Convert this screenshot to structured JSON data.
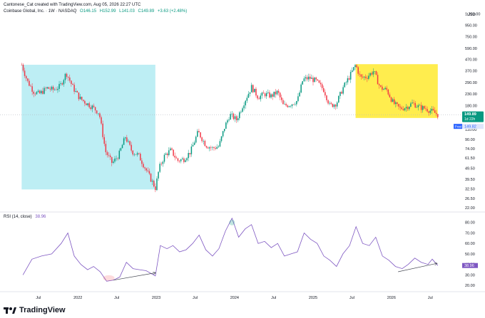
{
  "header": {
    "credit": "Cantonese_Cat created with TradingView.com, Aug 05, 2026 22:27 UTC",
    "symbol": "Coinbase Global, Inc. · 1W · NASDAQ",
    "open": "O146.15",
    "high": "H152.99",
    "low": "L141.03",
    "close": "C149.89",
    "change": "+3.63 (+2.48%)"
  },
  "rsi_header": {
    "label": "RSI (14, close)",
    "value": "38.96"
  },
  "branding": {
    "logo_text": "TradingView"
  },
  "colors": {
    "up": "#089981",
    "down": "#f23645",
    "cyan_zone": "#b2ebf2",
    "yellow_zone": "#ffeb3b",
    "rsi_line": "#7e57c2",
    "price_badge": "#089981",
    "post_badge": "#2962ff"
  },
  "chart_data": [
    {
      "type": "candlestick",
      "scale": "log",
      "currency_label": "USD",
      "y_ticks": [
        "1,200.00",
        "950.00",
        "750.00",
        "590.00",
        "470.00",
        "370.00",
        "290.00",
        "230.00",
        "180.00",
        "140.00",
        "110.00",
        "90.00",
        "74.00",
        "61.50",
        "49.50",
        "39.50",
        "32.50",
        "26.50",
        "22.00"
      ],
      "y_tick_values": [
        1200,
        950,
        750,
        590,
        470,
        370,
        290,
        230,
        180,
        140,
        110,
        90,
        74,
        61.5,
        49.5,
        39.5,
        32.5,
        26.5,
        22
      ],
      "x_ticks": [
        "Jul",
        "2022",
        "Jul",
        "2023",
        "Jul",
        "2024",
        "Jul",
        "2025",
        "Jul",
        "2026",
        "Jul"
      ],
      "x_tick_dates": [
        "2021-07-01",
        "2022-01-01",
        "2022-07-01",
        "2023-01-01",
        "2023-07-01",
        "2024-01-01",
        "2024-07-01",
        "2025-01-01",
        "2025-07-01",
        "2026-01-01",
        "2026-07-01"
      ],
      "last_price": {
        "value": 149.89,
        "label": "149.89",
        "countdown": "1d 22h"
      },
      "post_market": {
        "label": "Post",
        "value": "149.82"
      },
      "close_path": [
        [
          "2021-04-14",
          420
        ],
        [
          "2021-05-10",
          300
        ],
        [
          "2021-06-10",
          240
        ],
        [
          "2021-07-05",
          230
        ],
        [
          "2021-08-10",
          260
        ],
        [
          "2021-09-10",
          250
        ],
        [
          "2021-10-10",
          270
        ],
        [
          "2021-11-08",
          355
        ],
        [
          "2021-12-10",
          260
        ],
        [
          "2022-01-10",
          210
        ],
        [
          "2022-02-10",
          190
        ],
        [
          "2022-03-10",
          175
        ],
        [
          "2022-04-10",
          155
        ],
        [
          "2022-05-10",
          70
        ],
        [
          "2022-06-10",
          55
        ],
        [
          "2022-07-10",
          65
        ],
        [
          "2022-08-10",
          95
        ],
        [
          "2022-09-10",
          70
        ],
        [
          "2022-10-10",
          65
        ],
        [
          "2022-11-10",
          50
        ],
        [
          "2022-12-28",
          33
        ],
        [
          "2023-01-15",
          50
        ],
        [
          "2023-02-10",
          65
        ],
        [
          "2023-03-10",
          72
        ],
        [
          "2023-04-10",
          58
        ],
        [
          "2023-05-10",
          60
        ],
        [
          "2023-06-10",
          70
        ],
        [
          "2023-07-15",
          105
        ],
        [
          "2023-08-20",
          80
        ],
        [
          "2023-09-20",
          75
        ],
        [
          "2023-10-20",
          78
        ],
        [
          "2023-11-15",
          115
        ],
        [
          "2023-12-10",
          150
        ],
        [
          "2024-01-10",
          135
        ],
        [
          "2024-02-15",
          195
        ],
        [
          "2024-03-20",
          265
        ],
        [
          "2024-04-20",
          215
        ],
        [
          "2024-05-20",
          230
        ],
        [
          "2024-06-20",
          220
        ],
        [
          "2024-07-20",
          240
        ],
        [
          "2024-08-15",
          180
        ],
        [
          "2024-09-15",
          185
        ],
        [
          "2024-10-20",
          200
        ],
        [
          "2024-11-15",
          310
        ],
        [
          "2024-12-15",
          320
        ],
        [
          "2025-01-15",
          300
        ],
        [
          "2025-02-20",
          250
        ],
        [
          "2025-03-20",
          180
        ],
        [
          "2025-04-20",
          190
        ],
        [
          "2025-05-20",
          260
        ],
        [
          "2025-06-20",
          330
        ],
        [
          "2025-07-18",
          420
        ],
        [
          "2025-08-10",
          320
        ],
        [
          "2025-09-10",
          330
        ],
        [
          "2025-10-10",
          370
        ],
        [
          "2025-11-10",
          260
        ],
        [
          "2025-12-10",
          250
        ],
        [
          "2026-01-10",
          190
        ],
        [
          "2026-02-10",
          170
        ],
        [
          "2026-03-10",
          175
        ],
        [
          "2026-04-10",
          190
        ],
        [
          "2026-05-10",
          175
        ],
        [
          "2026-06-10",
          170
        ],
        [
          "2026-07-10",
          160
        ],
        [
          "2026-08-05",
          149.89
        ]
      ],
      "annotations": [
        {
          "type": "highlight-zone",
          "color": "cyan",
          "from": "2021-04-14",
          "to": "2022-12-28",
          "low": 32,
          "high": 420
        },
        {
          "type": "highlight-zone",
          "color": "yellow",
          "from": "2025-07-18",
          "to": "2026-08-05",
          "low": 140,
          "high": 425
        }
      ]
    },
    {
      "type": "line",
      "name": "RSI (14, close)",
      "y_ticks": [
        "80.00",
        "70.00",
        "60.00",
        "50.00",
        "40.00",
        "30.00",
        "20.00"
      ],
      "y_tick_values": [
        80,
        70,
        60,
        50,
        40,
        30,
        20
      ],
      "last_value": "38.96",
      "points": [
        [
          "2021-04-20",
          30
        ],
        [
          "2021-06-01",
          45
        ],
        [
          "2021-07-15",
          48
        ],
        [
          "2021-09-01",
          50
        ],
        [
          "2021-10-15",
          60
        ],
        [
          "2021-11-15",
          70
        ],
        [
          "2021-12-15",
          48
        ],
        [
          "2022-01-15",
          40
        ],
        [
          "2022-02-15",
          35
        ],
        [
          "2022-03-15",
          38
        ],
        [
          "2022-04-15",
          33
        ],
        [
          "2022-05-15",
          24
        ],
        [
          "2022-06-15",
          25
        ],
        [
          "2022-07-15",
          28
        ],
        [
          "2022-08-15",
          42
        ],
        [
          "2022-09-15",
          36
        ],
        [
          "2022-10-15",
          35
        ],
        [
          "2022-11-15",
          34
        ],
        [
          "2022-12-28",
          29
        ],
        [
          "2023-01-20",
          58
        ],
        [
          "2023-02-20",
          55
        ],
        [
          "2023-03-20",
          58
        ],
        [
          "2023-04-20",
          52
        ],
        [
          "2023-05-20",
          54
        ],
        [
          "2023-06-20",
          60
        ],
        [
          "2023-07-20",
          68
        ],
        [
          "2023-08-20",
          54
        ],
        [
          "2023-09-20",
          48
        ],
        [
          "2023-10-20",
          55
        ],
        [
          "2023-11-20",
          72
        ],
        [
          "2023-12-20",
          84
        ],
        [
          "2024-01-20",
          66
        ],
        [
          "2024-02-20",
          74
        ],
        [
          "2024-03-20",
          78
        ],
        [
          "2024-04-20",
          60
        ],
        [
          "2024-05-20",
          62
        ],
        [
          "2024-06-20",
          56
        ],
        [
          "2024-07-20",
          60
        ],
        [
          "2024-08-20",
          48
        ],
        [
          "2024-09-20",
          50
        ],
        [
          "2024-10-20",
          52
        ],
        [
          "2024-11-20",
          70
        ],
        [
          "2024-12-20",
          64
        ],
        [
          "2025-01-20",
          60
        ],
        [
          "2025-02-20",
          48
        ],
        [
          "2025-03-20",
          44
        ],
        [
          "2025-04-20",
          38
        ],
        [
          "2025-05-20",
          50
        ],
        [
          "2025-06-20",
          58
        ],
        [
          "2025-07-20",
          76
        ],
        [
          "2025-08-20",
          60
        ],
        [
          "2025-09-20",
          58
        ],
        [
          "2025-10-20",
          66
        ],
        [
          "2025-11-20",
          48
        ],
        [
          "2025-12-20",
          44
        ],
        [
          "2026-01-20",
          38
        ],
        [
          "2026-02-20",
          36
        ],
        [
          "2026-03-20",
          40
        ],
        [
          "2026-04-20",
          46
        ],
        [
          "2026-05-20",
          42
        ],
        [
          "2026-06-20",
          40
        ],
        [
          "2026-07-10",
          45
        ],
        [
          "2026-08-05",
          38.96
        ]
      ],
      "annotations": [
        {
          "type": "trendline-arrow",
          "from": [
            "2022-06-15",
            25
          ],
          "to": [
            "2022-12-28",
            32
          ]
        },
        {
          "type": "trendline-arrow",
          "from": [
            "2026-02-01",
            33
          ],
          "to": [
            "2026-08-01",
            41
          ]
        }
      ]
    }
  ]
}
